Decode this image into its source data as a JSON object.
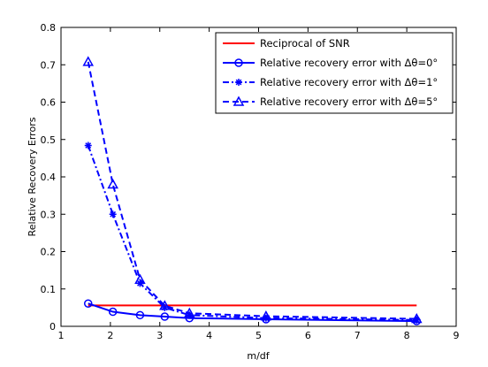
{
  "chart_data": {
    "type": "line",
    "title": "",
    "xlabel": "m/df",
    "ylabel": "Relative Recovery Errors",
    "xlim": [
      1,
      9
    ],
    "ylim": [
      0,
      0.8
    ],
    "xticks": [
      "1",
      "2",
      "3",
      "4",
      "5",
      "6",
      "7",
      "8",
      "9"
    ],
    "yticks": [
      "0",
      "0.1",
      "0.2",
      "0.3",
      "0.4",
      "0.5",
      "0.6",
      "0.7",
      "0.8"
    ],
    "grid": false,
    "legend_position": "top-right",
    "series": [
      {
        "name": "Reciprocal of SNR",
        "color": "#ff0000",
        "line_style": "solid",
        "marker": "none",
        "x": [
          1.55,
          8.2
        ],
        "y": [
          0.056,
          0.056
        ]
      },
      {
        "name": "Relative recovery error with Δθ=0°",
        "color": "#0000ff",
        "line_style": "solid",
        "marker": "circle",
        "x": [
          1.55,
          2.05,
          2.6,
          3.1,
          3.6,
          5.15,
          8.2
        ],
        "y": [
          0.061,
          0.039,
          0.03,
          0.026,
          0.022,
          0.019,
          0.014
        ]
      },
      {
        "name": "Relative recovery error with Δθ=1°",
        "color": "#0000ff",
        "line_style": "dashdot",
        "marker": "asterisk",
        "x": [
          1.55,
          2.05,
          2.6,
          3.1,
          3.6,
          5.15,
          8.2
        ],
        "y": [
          0.484,
          0.3,
          0.115,
          0.05,
          0.03,
          0.022,
          0.017
        ]
      },
      {
        "name": "Relative recovery error with Δθ=5°",
        "color": "#0000ff",
        "line_style": "dashed",
        "marker": "triangle",
        "x": [
          1.55,
          2.05,
          2.6,
          3.1,
          3.6,
          5.15,
          8.2
        ],
        "y": [
          0.708,
          0.38,
          0.125,
          0.055,
          0.035,
          0.027,
          0.02
        ]
      }
    ]
  }
}
